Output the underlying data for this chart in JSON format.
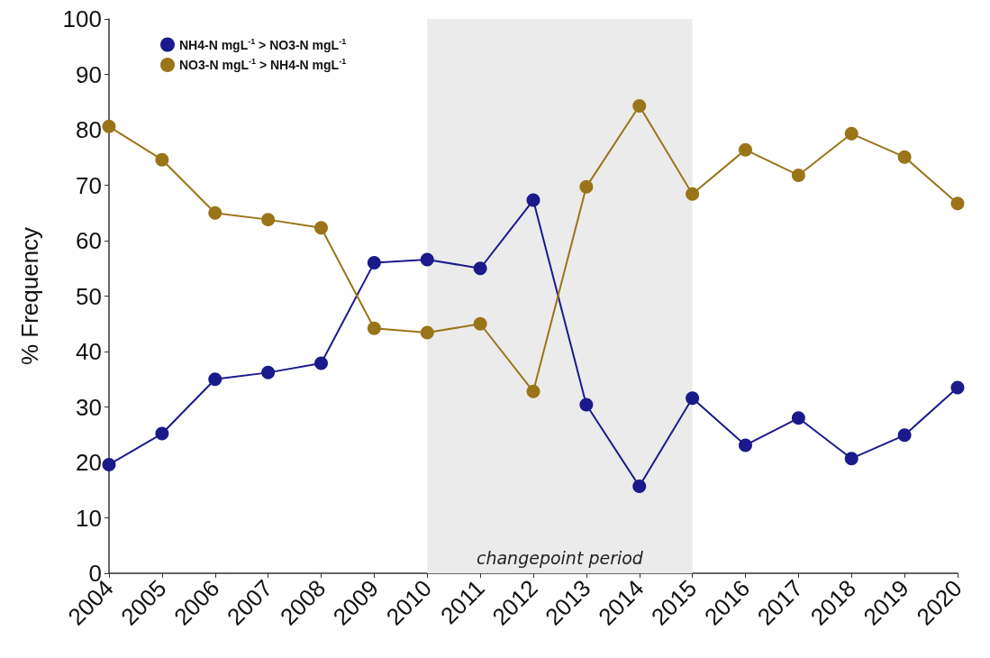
{
  "chart_data": {
    "type": "line",
    "ylabel": "% Frequency",
    "categories": [
      "2004",
      "2005",
      "2006",
      "2007",
      "2008",
      "2009",
      "2010",
      "2011",
      "2012",
      "2013",
      "2014",
      "2015",
      "2016",
      "2017",
      "2018",
      "2019",
      "2020"
    ],
    "series": [
      {
        "name": "NH4-N mgL$^{-1}$ > NO3-N mgL$^{-1}$",
        "color": "#1a1a8c",
        "values": [
          19.6,
          25.2,
          35,
          36.2,
          37.9,
          56,
          56.6,
          55,
          67.3,
          30.4,
          15.7,
          31.6,
          23.1,
          28,
          20.7,
          24.9,
          33.5
        ]
      },
      {
        "name": "NO3-N mgL$^{-1}$ > NH4-N mgL$^{-1}$",
        "color": "#9a7418",
        "values": [
          80.6,
          74.6,
          65,
          63.8,
          62.3,
          44.2,
          43.4,
          45,
          32.8,
          69.7,
          84.3,
          68.4,
          76.4,
          71.8,
          79.3,
          75.1,
          66.7
        ]
      }
    ],
    "ylim": [
      0,
      100
    ],
    "yticks": [
      0,
      10,
      20,
      30,
      40,
      50,
      60,
      70,
      80,
      90,
      100
    ],
    "bands": [
      {
        "axis": "x",
        "from": "2010",
        "to": "2015",
        "label": "changepoint period",
        "color": "#ebebeb"
      }
    ],
    "grid": false,
    "legend": "top left",
    "marker": "circle",
    "line_style": "solid"
  }
}
